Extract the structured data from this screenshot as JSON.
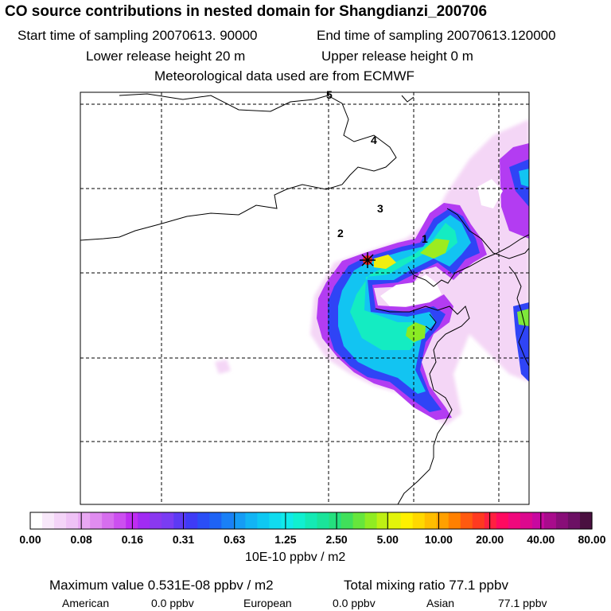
{
  "header": {
    "title": "CO  source contributions in nested domain for Shangdianzi_200706",
    "start_time": "Start time of sampling 20070613. 90000",
    "end_time": "End time of sampling 20070613.120000",
    "lower_release": "Lower release height   20 m",
    "upper_release": "Upper release height    0 m",
    "met_data": "Meteorological data used are from ECMWF"
  },
  "map": {
    "grid_rows": 5,
    "grid_cols": 5,
    "receptor_marker": "asterisk-star",
    "region_labels": [
      "1",
      "2",
      "3",
      "4",
      "5"
    ]
  },
  "colorbar": {
    "tick_labels": [
      "0.00",
      "0.08",
      "0.16",
      "0.31",
      "0.63",
      "1.25",
      "2.50",
      "5.00",
      "10.00",
      "20.00",
      "40.00",
      "80.00"
    ],
    "units": "10E-10 ppbv / m2",
    "colors": [
      "#ffffff",
      "#f8e8fa",
      "#f4d4f8",
      "#efc2f6",
      "#e9a8f3",
      "#e08cf0",
      "#d66eee",
      "#cc4ff0",
      "#bf2cf2",
      "#a12bf3",
      "#8a38f0",
      "#7a3cf3",
      "#5d3af4",
      "#3e3bf6",
      "#2a4ef6",
      "#1e63f5",
      "#1a80f6",
      "#159cf5",
      "#12b4f4",
      "#0ec8f2",
      "#10dcef",
      "#10eaea",
      "#10f0d0",
      "#14eab4",
      "#1ae49a",
      "#24e07e",
      "#40e05a",
      "#66e63c",
      "#90ec22",
      "#bef014",
      "#e2f40a",
      "#fff000",
      "#ffd800",
      "#ffbe00",
      "#ffa000",
      "#ff8000",
      "#ff5a10",
      "#ff3a20",
      "#ff2040",
      "#ff0a60",
      "#f0087c",
      "#dc088e",
      "#c808a0",
      "#a80c8c",
      "#880e78",
      "#6c1064",
      "#4a1040"
    ]
  },
  "footer": {
    "max_label": "Maximum value  0.531E-08 ppbv / m2",
    "total_label": "Total mixing ratio      77.1 ppbv",
    "sources": [
      {
        "name": "American",
        "value": "0.0 ppbv"
      },
      {
        "name": "European",
        "value": "0.0 ppbv"
      },
      {
        "name": "Asian",
        "value": "77.1 ppbv"
      }
    ]
  }
}
